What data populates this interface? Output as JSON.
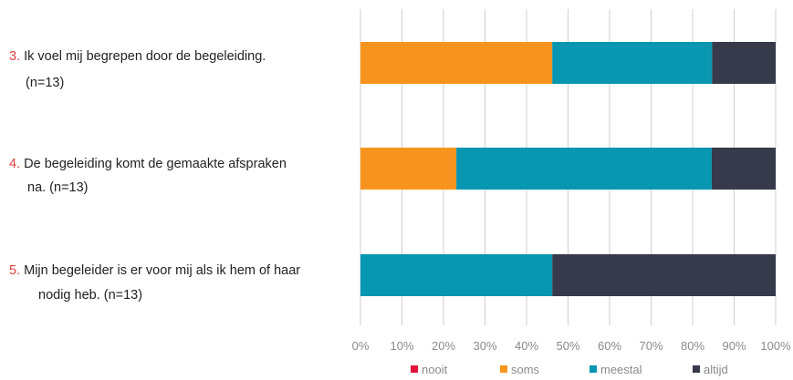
{
  "chart_data": {
    "type": "bar",
    "orientation": "horizontal",
    "stacked": true,
    "percent": true,
    "title": "",
    "xlabel": "",
    "ylabel": "",
    "xlim": [
      0,
      100
    ],
    "grid": true,
    "legend_position": "bottom",
    "x_ticks": [
      "0%",
      "10%",
      "20%",
      "30%",
      "40%",
      "50%",
      "60%",
      "70%",
      "80%",
      "90%",
      "100%"
    ],
    "categories": [
      {
        "num": "3.",
        "line1": "Ik voel mij begrepen door de begeleiding.",
        "line2": "(n=13)"
      },
      {
        "num": "4.",
        "line1": "De begeleiding komt de gemaakte afspraken",
        "line2": "na. (n=13)"
      },
      {
        "num": "5.",
        "line1": "Mijn begeleider is er voor mij als ik hem of haar",
        "line2": "nodig heb. (n=13)"
      }
    ],
    "series": [
      {
        "name": "nooit",
        "color": "#e3143c",
        "values": [
          0,
          0,
          0
        ]
      },
      {
        "name": "soms",
        "color": "#f7941d",
        "values": [
          46.2,
          23.1,
          0
        ]
      },
      {
        "name": "meestal",
        "color": "#0896b0",
        "values": [
          38.5,
          61.5,
          46.2
        ]
      },
      {
        "name": "altijd",
        "color": "#363a4b",
        "values": [
          15.3,
          15.4,
          53.8
        ]
      }
    ]
  }
}
